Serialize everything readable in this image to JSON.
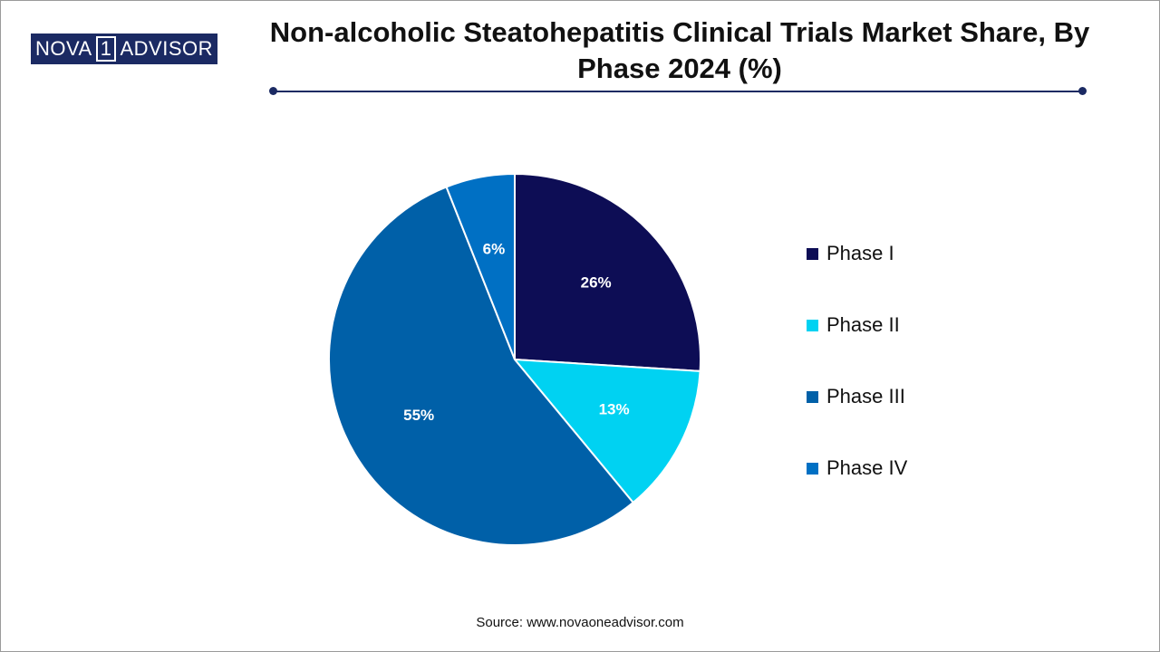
{
  "logo": {
    "text_left": "NOVA",
    "text_mid": "1",
    "text_right": "ADVISOR",
    "color": "#1b2a63"
  },
  "source": "Source: www.novaoneadvisor.com",
  "chart_data": {
    "type": "pie",
    "title": "Non-alcoholic Steatohepatitis Clinical Trials Market Share, By Phase 2024 (%)",
    "categories": [
      "Phase I",
      "Phase II",
      "Phase III",
      "Phase IV"
    ],
    "values": [
      26,
      13,
      55,
      6
    ],
    "labels": [
      "26%",
      "13%",
      "55%",
      "6%"
    ],
    "colors": [
      "#0d0d55",
      "#00d2f2",
      "#0060a8",
      "#0070c4"
    ],
    "legend_position": "right",
    "start_angle": "12 o'clock",
    "direction": "clockwise"
  }
}
